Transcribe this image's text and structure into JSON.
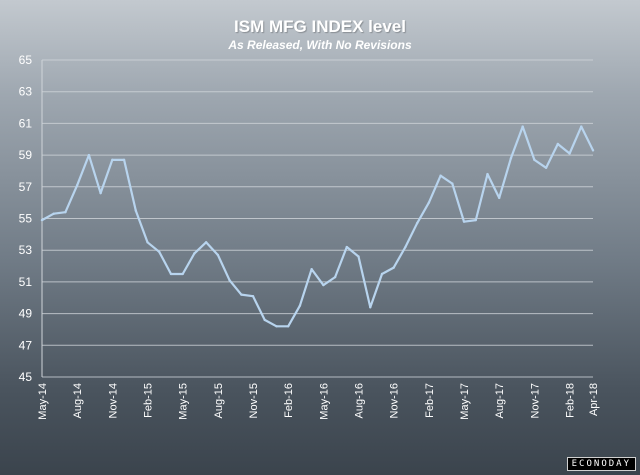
{
  "chart_data": {
    "type": "line",
    "title": "ISM MFG INDEX level",
    "subtitle": "As Released, With No Revisions",
    "ylim": [
      45,
      65
    ],
    "yticks": [
      45,
      47,
      49,
      51,
      53,
      55,
      57,
      59,
      61,
      63,
      65
    ],
    "grid": true,
    "legend": "none",
    "xtick_labels": [
      "May-14",
      "Aug-14",
      "Nov-14",
      "Feb-15",
      "May-15",
      "Aug-15",
      "Nov-15",
      "Feb-16",
      "May-16",
      "Aug-16",
      "Nov-16",
      "Feb-17",
      "May-17",
      "Aug-17",
      "Nov-17",
      "Feb-18",
      "Apr-18"
    ],
    "x": [
      "May-14",
      "Jun-14",
      "Jul-14",
      "Aug-14",
      "Sep-14",
      "Oct-14",
      "Nov-14",
      "Dec-14",
      "Jan-15",
      "Feb-15",
      "Mar-15",
      "Apr-15",
      "May-15",
      "Jun-15",
      "Jul-15",
      "Aug-15",
      "Sep-15",
      "Oct-15",
      "Nov-15",
      "Dec-15",
      "Jan-16",
      "Feb-16",
      "Mar-16",
      "Apr-16",
      "May-16",
      "Jun-16",
      "Jul-16",
      "Aug-16",
      "Sep-16",
      "Oct-16",
      "Nov-16",
      "Dec-16",
      "Jan-17",
      "Feb-17",
      "Mar-17",
      "Apr-17",
      "May-17",
      "Jun-17",
      "Jul-17",
      "Aug-17",
      "Sep-17",
      "Oct-17",
      "Nov-17",
      "Dec-17",
      "Jan-18",
      "Feb-18",
      "Mar-18",
      "Apr-18"
    ],
    "series": [
      {
        "values": [
          54.9,
          55.3,
          55.4,
          57.1,
          59.0,
          56.6,
          58.7,
          58.7,
          55.5,
          53.5,
          52.9,
          51.5,
          51.5,
          52.8,
          53.5,
          52.7,
          51.1,
          50.2,
          50.1,
          48.6,
          48.2,
          48.2,
          49.5,
          51.8,
          50.8,
          51.3,
          53.2,
          52.6,
          49.4,
          51.5,
          51.9,
          53.2,
          54.7,
          56.0,
          57.7,
          57.2,
          54.8,
          54.9,
          57.8,
          56.3,
          58.8,
          60.8,
          58.7,
          58.2,
          59.7,
          59.1,
          60.8,
          59.3
        ],
        "color": "#b8d4ee"
      }
    ],
    "colors": {
      "grid": "#cfd4d9",
      "axis_text": "#ffffff",
      "line": "#b8d4ee"
    }
  },
  "brand": "ECONODAY"
}
